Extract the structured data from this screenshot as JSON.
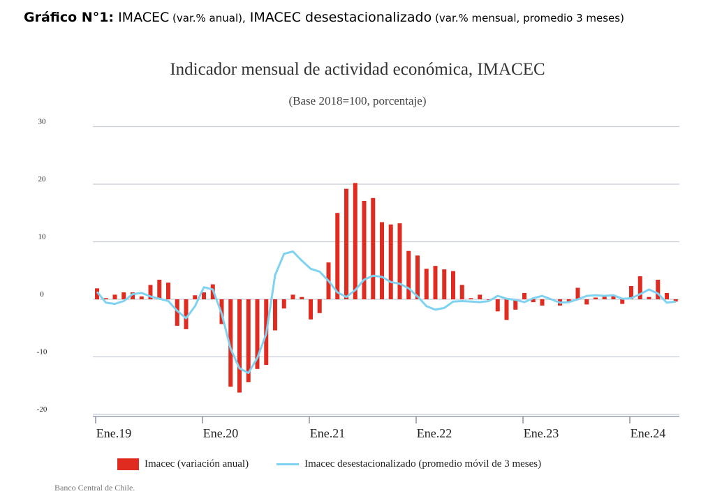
{
  "heading": {
    "bold": "Gráfico N°1:",
    "part1": " IMACEC",
    "part1_note": " (var.% anual),",
    "part2": " IMACEC desestacionalizado",
    "part2_note": " (var.% mensual, promedio 3 meses)"
  },
  "source": "Banco Central de Chile.",
  "colors": {
    "bar": "#e02b20",
    "line": "#7fd3f0",
    "grid": "#c8cdd6"
  },
  "chart_data": {
    "type": "bar",
    "title": "Indicador mensual de actividad económica, IMACEC",
    "subtitle": "(Base 2018=100, porcentaje)",
    "xlabel": "",
    "ylabel": "",
    "ylim": [
      -20,
      30
    ],
    "yticks": [
      "30",
      "20",
      "10",
      "0",
      "-10",
      "-20"
    ],
    "ytick_values": [
      30,
      20,
      10,
      0,
      -10,
      -20
    ],
    "xticks": [
      "Ene.19",
      "Ene.20",
      "Ene.21",
      "Ene.22",
      "Ene.23",
      "Ene.24"
    ],
    "xtick_month_index": [
      0,
      12,
      24,
      36,
      48,
      60
    ],
    "grid": true,
    "legend_position": "bottom",
    "series": [
      {
        "name": "Imacec (variación anual)",
        "type": "bar",
        "values": [
          1.9,
          0.2,
          0.8,
          1.2,
          1.2,
          0.5,
          2.5,
          3.4,
          2.9,
          -4.6,
          -5.2,
          0.7,
          1.2,
          2.6,
          -4.3,
          -15.2,
          -16.2,
          -14.4,
          -12.1,
          -11.4,
          -5.4,
          -1.6,
          0.8,
          0.4,
          -3.5,
          -2.4,
          6.4,
          15.0,
          19.2,
          20.2,
          17.1,
          17.6,
          13.4,
          13.0,
          13.2,
          8.4,
          7.6,
          5.3,
          5.8,
          5.2,
          4.9,
          2.5,
          0.2,
          0.8,
          -0.1,
          -2.1,
          -3.6,
          -1.8,
          1.1,
          -0.5,
          -1.1,
          -0.1,
          -1.1,
          -0.5,
          2.0,
          -0.9,
          0.3,
          0.5,
          0.6,
          -0.8,
          2.3,
          4.0,
          0.4,
          3.4,
          1.1,
          -0.4
        ]
      },
      {
        "name": "Imacec desestacionalizado (promedio móvil de 3 meses)",
        "type": "line",
        "values": [
          1.3,
          -0.6,
          -0.8,
          -0.3,
          0.9,
          1.1,
          0.5,
          0.1,
          -0.3,
          -2.0,
          -3.3,
          -1.2,
          2.1,
          1.7,
          -2.5,
          -8.6,
          -12.0,
          -12.8,
          -10.2,
          -6.0,
          4.2,
          7.9,
          8.3,
          6.7,
          5.3,
          4.8,
          3.2,
          1.2,
          0.4,
          1.6,
          3.4,
          4.1,
          3.9,
          3.0,
          2.7,
          1.9,
          0.5,
          -1.2,
          -1.8,
          -1.5,
          -0.4,
          -0.3,
          -0.4,
          -0.5,
          -0.3,
          0.6,
          0.1,
          -0.1,
          -0.5,
          0.2,
          0.6,
          0.0,
          -0.6,
          -0.5,
          0.0,
          0.6,
          0.7,
          0.6,
          0.7,
          0.1,
          0.2,
          0.9,
          1.7,
          1.0,
          -0.6,
          -0.4
        ]
      }
    ]
  }
}
